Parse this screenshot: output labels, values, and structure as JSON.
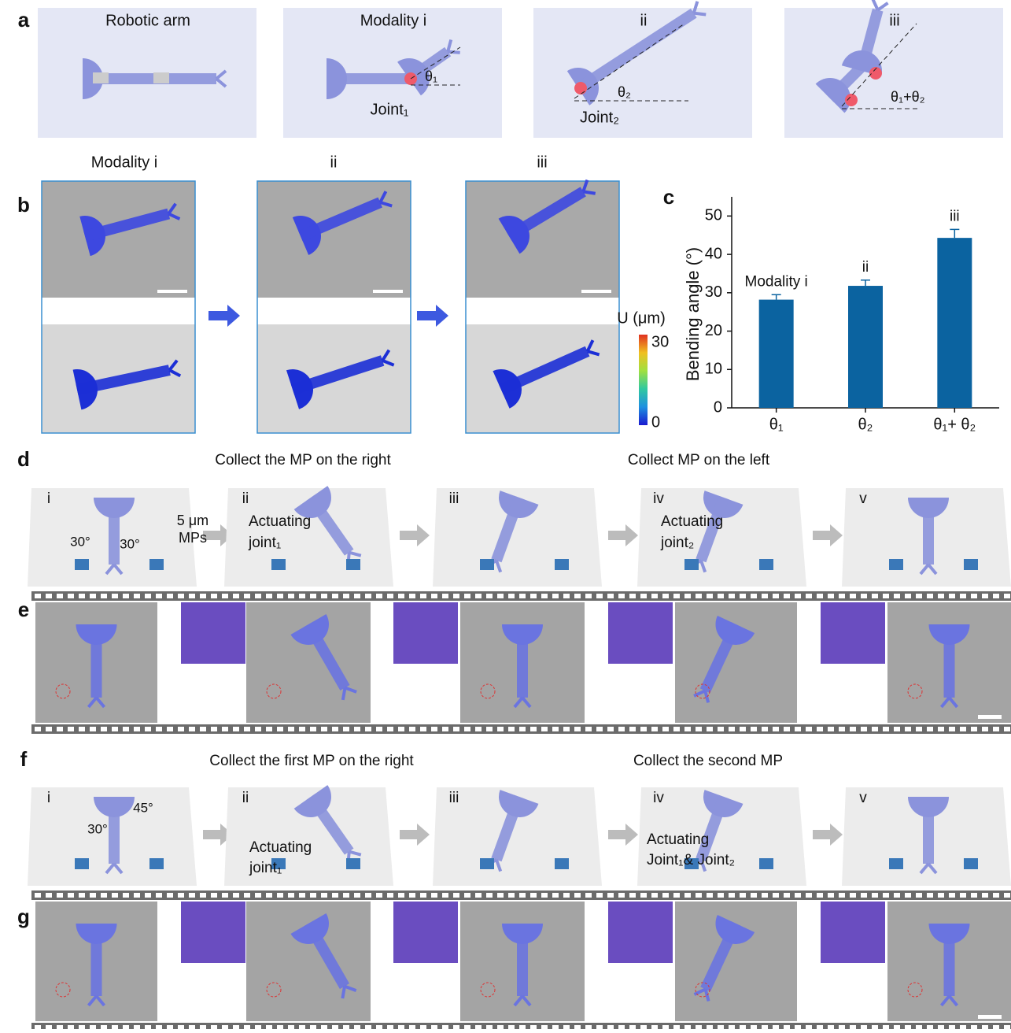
{
  "panel_labels": [
    "a",
    "b",
    "c",
    "d",
    "e",
    "f",
    "g"
  ],
  "panel_a": {
    "titles": [
      "Robotic arm",
      "Modality i",
      "ii",
      "iii"
    ],
    "annotations": [
      "θ₁",
      "Joint₁",
      "θ₂",
      "Joint₂",
      "θ₁+θ₂"
    ]
  },
  "panel_b": {
    "titles": [
      "Modality i",
      "ii",
      "iii"
    ],
    "colorbar": {
      "label": "U (μm)",
      "max": 30,
      "min": 0
    }
  },
  "chart_data": {
    "type": "bar",
    "ylabel": "Bending angle (°)",
    "categories": [
      "θ₁",
      "θ₂",
      "θ₁+ θ₂"
    ],
    "values": [
      28.2,
      31.8,
      44.3
    ],
    "errors": [
      1.3,
      1.5,
      2.2
    ],
    "annotations": [
      "Modality i",
      "ii",
      "iii"
    ],
    "color": "#0b63a0",
    "ylim": [
      0,
      55
    ],
    "yticks": [
      0,
      10,
      20,
      30,
      40,
      50
    ]
  },
  "panel_d": {
    "headings": [
      "Collect the MP on the right",
      "Collect  MP on the left"
    ],
    "steps": [
      "i",
      "ii",
      "iii",
      "iv",
      "v"
    ],
    "annotations": [
      "30°",
      "30°",
      "5 μm",
      "MPs",
      "Actuating",
      "joint₁",
      "Actuating",
      "joint₂"
    ]
  },
  "panel_f": {
    "headings": [
      "Collect the first MP on the right",
      "Collect the second MP"
    ],
    "steps": [
      "i",
      "ii",
      "iii",
      "iv",
      "v"
    ],
    "annotations": [
      "45°",
      "30°",
      "Actuating",
      "joint₁",
      "Actuating",
      "Joint₁& Joint₂"
    ]
  }
}
